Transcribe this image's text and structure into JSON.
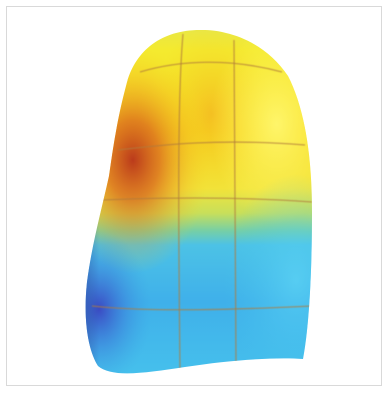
{
  "figure": {
    "subject": "",
    "colors": {
      "hot_dark": "#c2401e",
      "hot_orange": "#e58a1a",
      "warm_yellow": "#f3d21f",
      "bright_yellow": "#fff35a",
      "cool_green": "#8fd07a",
      "cool_cyan": "#46c6ee",
      "cool_blue": "#3aa0e2",
      "deep_blue": "#3a4fc8",
      "grid_line": "#b07a3a",
      "frame_border": "#d9d9d9"
    }
  }
}
